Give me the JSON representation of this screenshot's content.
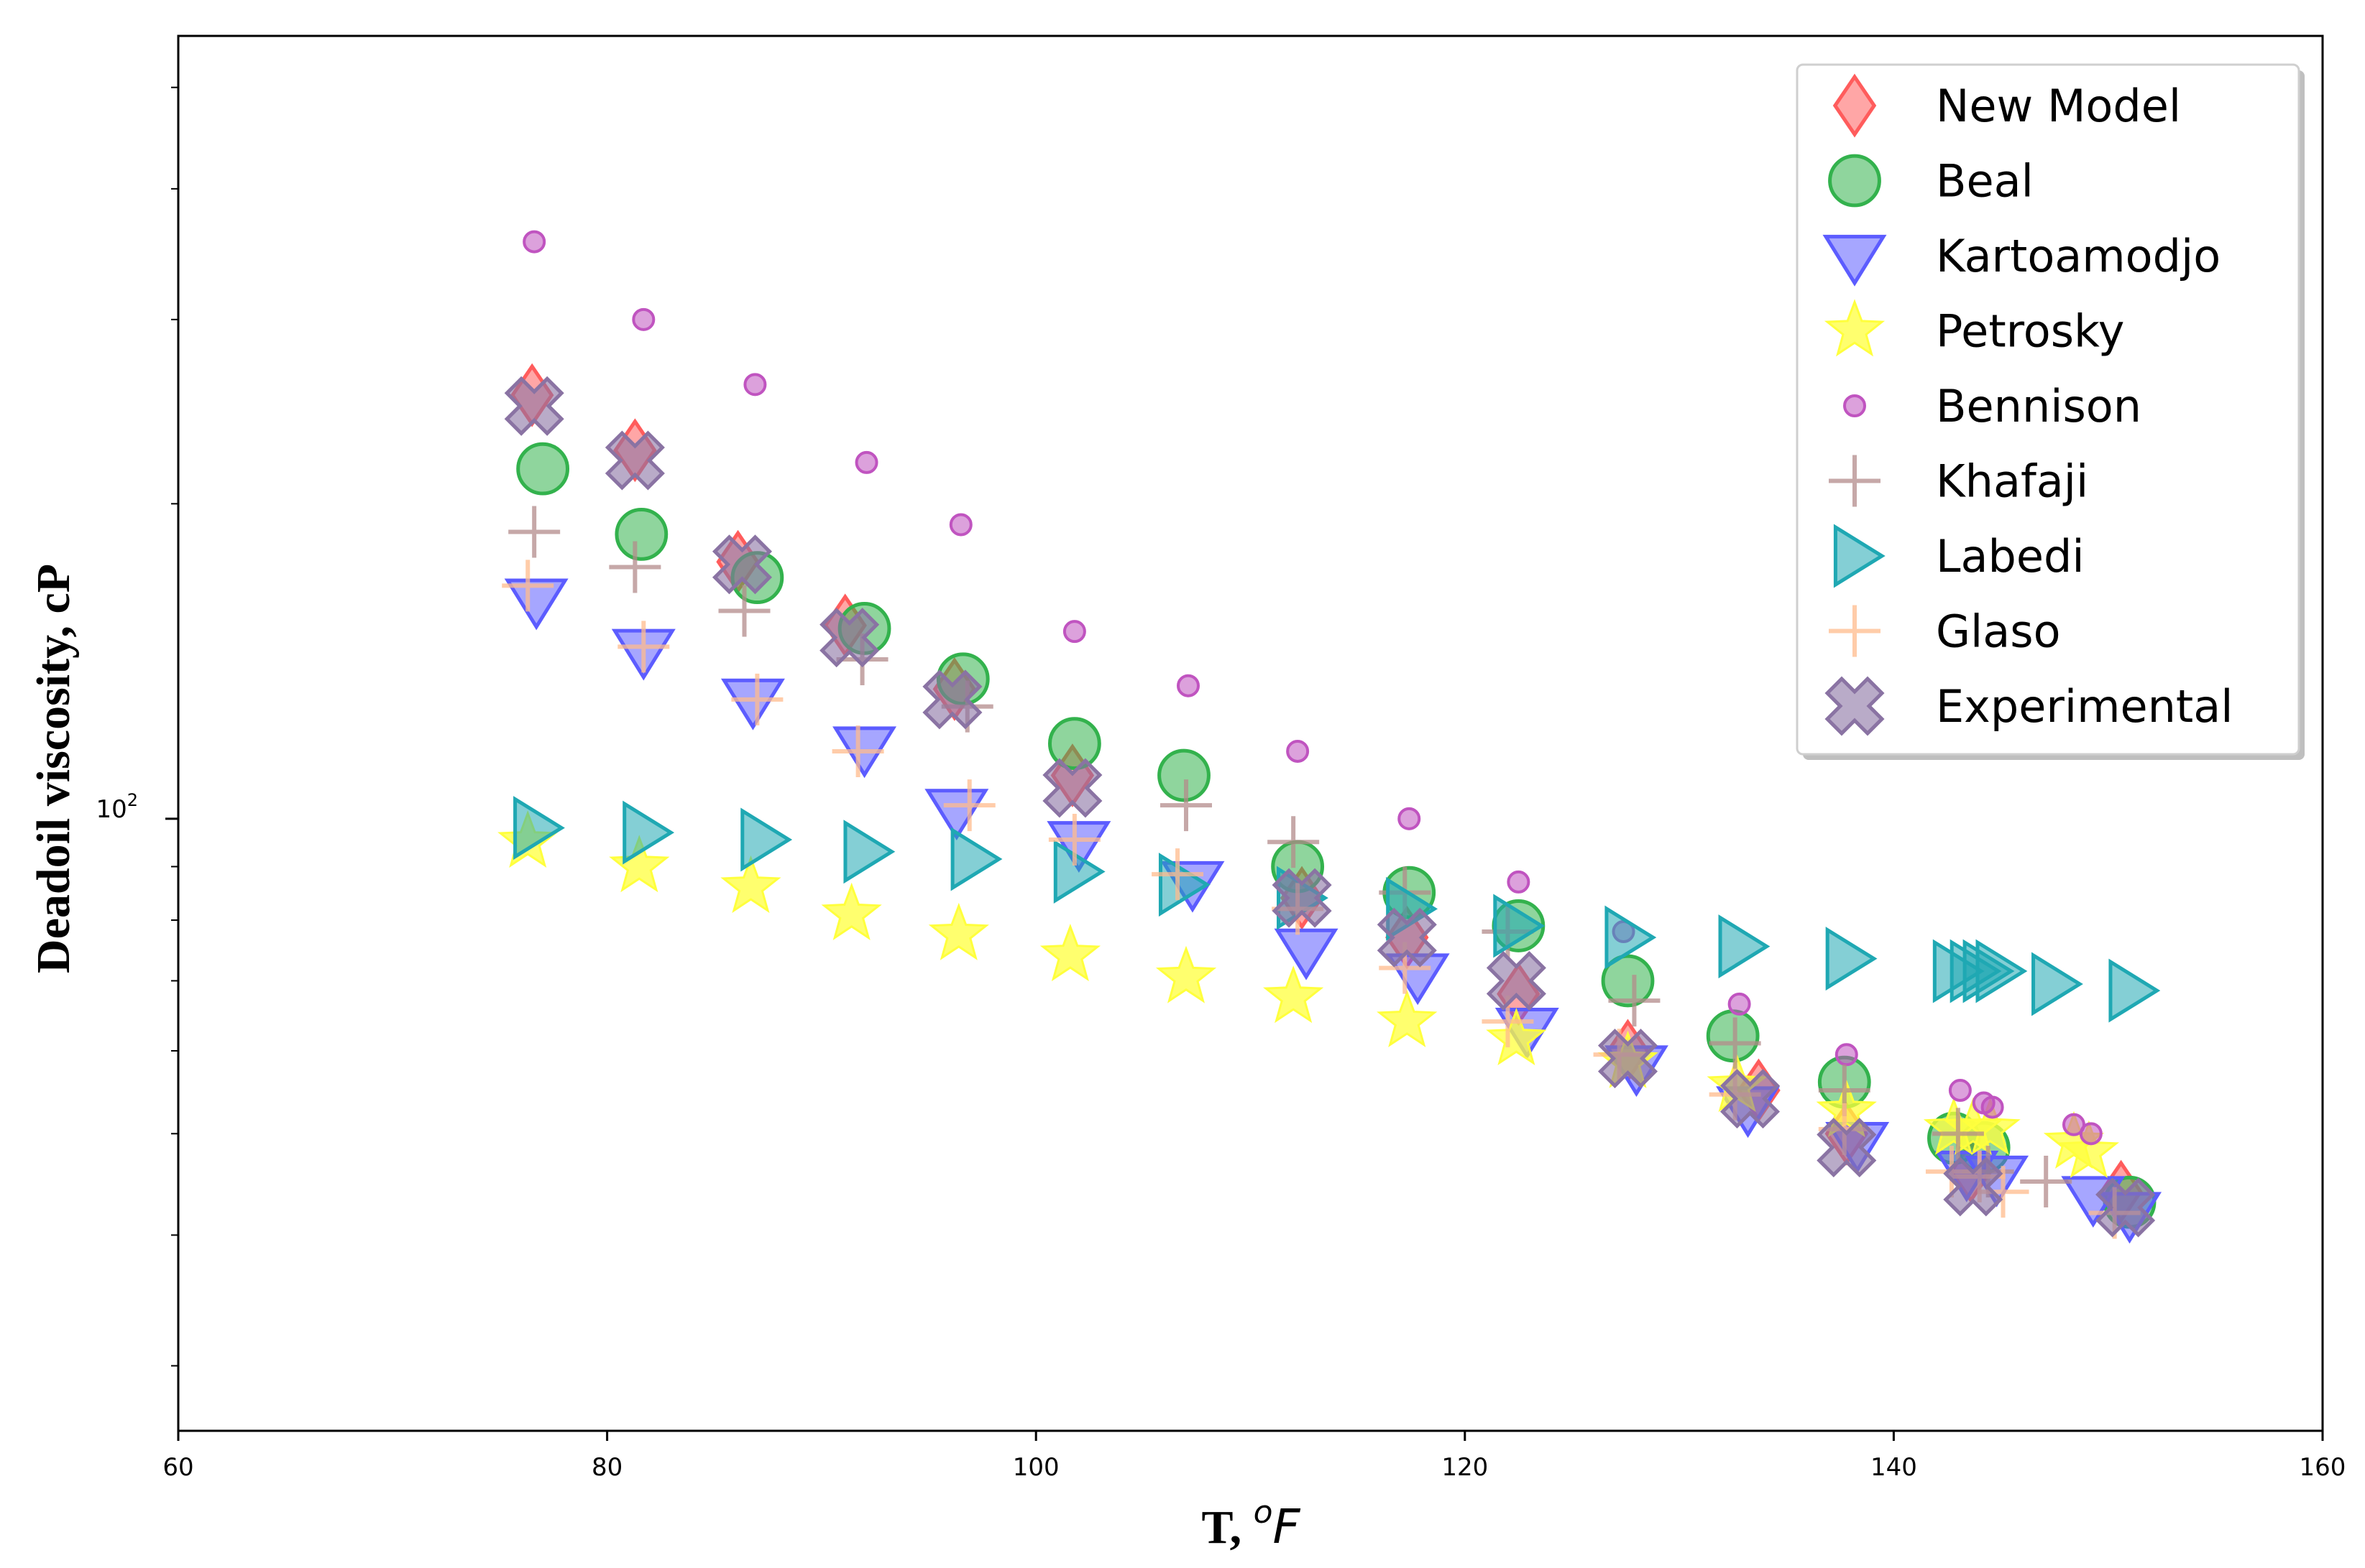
{
  "chart_data": {
    "type": "scatter",
    "title": "",
    "xlabel": "T, ",
    "xlabel_sup": "o",
    "xlabel_unit": "F",
    "ylabel": "Deadoil viscosity, cP",
    "xlim": [
      60,
      160
    ],
    "ylim": [
      26,
      560
    ],
    "yscale": "log",
    "xticks": [
      60,
      80,
      100,
      120,
      140,
      160
    ],
    "xtick_labels": [
      "60",
      "80",
      "100",
      "120",
      "140",
      "160"
    ],
    "yticks": [
      100
    ],
    "ytick_labels": [
      "10",
      "2"
    ],
    "legend_position": "upper right",
    "series": [
      {
        "name": "New Model",
        "marker": "diamond",
        "color": "#ff5c5c",
        "x": [
          76.5,
          81.3,
          86.1,
          91.1,
          96.2,
          101.7,
          112.4,
          117.3,
          122.5,
          127.6,
          133.7,
          137.8,
          143.6,
          150.6
        ],
        "y": [
          254,
          225,
          176,
          153,
          133,
          110,
          84,
          77,
          68,
          60,
          55,
          50,
          46,
          44
        ]
      },
      {
        "name": "Beal",
        "marker": "circle",
        "color": "#33b24d",
        "x": [
          77.0,
          81.6,
          87.0,
          92.0,
          96.6,
          101.8,
          106.9,
          112.2,
          117.4,
          122.5,
          127.6,
          132.5,
          137.7,
          142.8,
          144.2,
          151.0
        ],
        "y": [
          216,
          187,
          170,
          152,
          136,
          118,
          110,
          90,
          85,
          79,
          70,
          62,
          56,
          49.5,
          48.5,
          43
        ]
      },
      {
        "name": "Kartoamodjo",
        "marker": "triangle-down",
        "color": "#5c5cff",
        "x": [
          76.7,
          81.7,
          86.8,
          92.0,
          96.3,
          102.0,
          107.3,
          112.6,
          117.8,
          122.9,
          128.0,
          133.2,
          138.3,
          143.4,
          144.8,
          149.3,
          151.0
        ],
        "y": [
          162,
          145,
          130,
          117,
          102,
          95,
          87,
          75,
          71,
          63,
          58,
          53,
          49,
          46,
          45.5,
          43.5,
          42
        ]
      },
      {
        "name": "Petrosky",
        "marker": "star",
        "color": "#ffff3d",
        "x": [
          76.3,
          81.5,
          86.7,
          91.4,
          96.4,
          101.6,
          107.0,
          112.0,
          117.3,
          122.4,
          127.6,
          132.7,
          137.8,
          142.8,
          143.7,
          144.5,
          148.4,
          149.1
        ],
        "y": [
          95,
          90,
          86,
          81,
          77.5,
          74,
          70.5,
          67.5,
          64,
          61.5,
          58.5,
          55.5,
          52.5,
          50.5,
          50.5,
          50.5,
          49,
          48
        ]
      },
      {
        "name": "Bennison",
        "marker": "circle-small",
        "color": "#c054c0",
        "x": [
          76.6,
          81.7,
          86.9,
          92.1,
          96.5,
          101.8,
          107.1,
          112.2,
          117.4,
          122.5,
          127.4,
          132.8,
          137.8,
          143.1,
          144.2,
          144.6,
          148.4,
          149.2
        ],
        "y": [
          356,
          300,
          260,
          219,
          191,
          151,
          134,
          116,
          100,
          87,
          78,
          66.5,
          59.5,
          55,
          53.5,
          53,
          51,
          50
        ]
      },
      {
        "name": "Khafaji",
        "marker": "plus",
        "color": "#b38b8b",
        "x": [
          76.6,
          81.3,
          86.4,
          91.9,
          96.8,
          107.0,
          112.0,
          117.2,
          122.0,
          127.9,
          132.6,
          137.7,
          143.0,
          144.4,
          147.1
        ],
        "y": [
          188,
          174,
          158,
          142,
          128,
          103,
          95,
          85,
          78,
          67,
          61,
          55,
          50,
          46,
          45
        ]
      },
      {
        "name": "Labedi",
        "marker": "triangle-right",
        "color": "#1fa8b3",
        "x": [
          76.6,
          81.7,
          87.2,
          92.0,
          97.0,
          101.8,
          106.7,
          112.2,
          117.3,
          122.3,
          127.5,
          132.8,
          137.8,
          142.8,
          143.6,
          144.2,
          144.8,
          147.4,
          151.0
        ],
        "y": [
          98,
          97,
          95.5,
          93,
          91.5,
          89,
          86.5,
          84,
          82,
          79,
          77,
          75.5,
          73.5,
          71.5,
          71.5,
          71.5,
          71.5,
          69.5,
          68.5
        ]
      },
      {
        "name": "Glaso",
        "marker": "plus",
        "color": "#ffbb8c",
        "x": [
          76.3,
          81.7,
          87.0,
          91.7,
          96.9,
          101.8,
          106.6,
          112.2,
          117.2,
          122.0,
          127.2,
          132.6,
          137.7,
          142.7,
          144.0,
          145.1,
          150.3
        ],
        "y": [
          167,
          146,
          130,
          116,
          103,
          95.5,
          88.5,
          82,
          72,
          64,
          59.5,
          54.5,
          50.5,
          46,
          45.5,
          44,
          42
        ]
      },
      {
        "name": "Experimental",
        "marker": "x-thick",
        "color": "#8a73a3",
        "x": [
          76.6,
          81.3,
          86.3,
          91.3,
          96.1,
          101.7,
          112.4,
          117.3,
          122.4,
          127.6,
          133.3,
          137.8,
          143.7,
          150.8
        ],
        "y": [
          248,
          220,
          175,
          149,
          130,
          107,
          84,
          77,
          70,
          59,
          54,
          48.5,
          44.5,
          42.5
        ]
      }
    ]
  }
}
